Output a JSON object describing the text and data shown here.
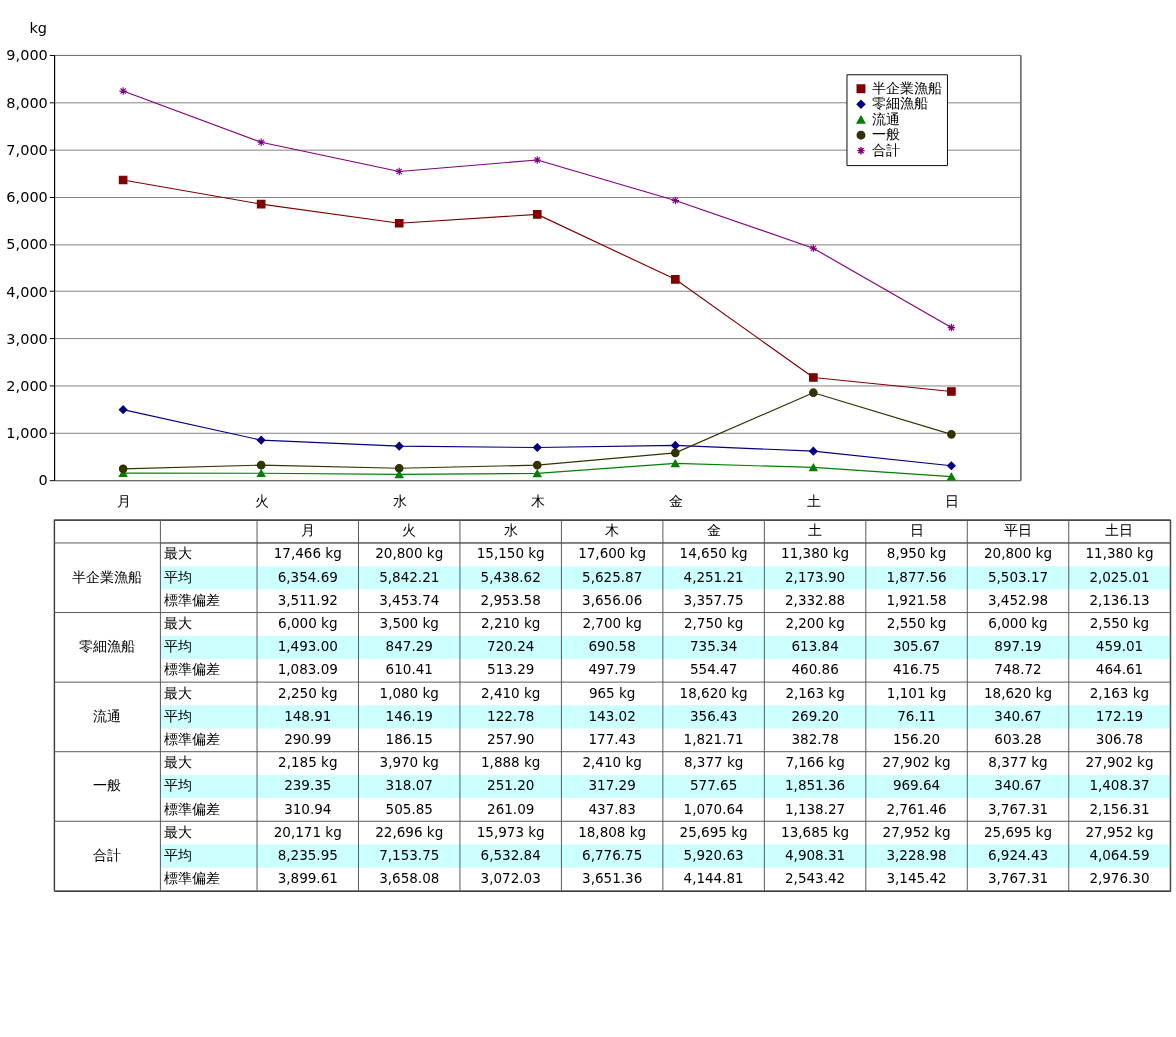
{
  "chart_data": [
    {
      "type": "line",
      "ylabel": "kg",
      "categories": [
        "月",
        "火",
        "水",
        "木",
        "金",
        "土",
        "日"
      ],
      "series": [
        {
          "name": "半企業漁船",
          "color": "#800000",
          "marker": "square",
          "values": [
            6354.69,
            5842.21,
            5438.62,
            5625.87,
            4251.21,
            2173.9,
            1877.56
          ]
        },
        {
          "name": "零細漁船",
          "color": "#000080",
          "marker": "diamond",
          "values": [
            1493.0,
            847.29,
            720.24,
            690.58,
            735.34,
            613.84,
            305.67
          ]
        },
        {
          "name": "流通",
          "color": "#008000",
          "marker": "triangle",
          "values": [
            148.91,
            146.19,
            122.78,
            143.02,
            356.43,
            269.2,
            76.11
          ]
        },
        {
          "name": "一般",
          "color": "#333300",
          "marker": "circle",
          "values": [
            239.35,
            318.07,
            251.2,
            317.29,
            577.65,
            1851.36,
            969.64
          ]
        },
        {
          "name": "合計",
          "color": "#800080",
          "marker": "cross",
          "values": [
            8235.95,
            7153.75,
            6532.84,
            6776.75,
            5920.63,
            4908.31,
            3228.98
          ]
        }
      ],
      "ylim": [
        0,
        9000
      ],
      "yticks": [
        {
          "value": 0,
          "label": "0"
        },
        {
          "value": 1000,
          "label": "1,000"
        },
        {
          "value": 2000,
          "label": "2,000"
        },
        {
          "value": 3000,
          "label": "3,000"
        },
        {
          "value": 4000,
          "label": "4,000"
        },
        {
          "value": 5000,
          "label": "5,000"
        },
        {
          "value": 6000,
          "label": "6,000"
        },
        {
          "value": 7000,
          "label": "7,000"
        },
        {
          "value": 8000,
          "label": "8,000"
        },
        {
          "value": 9000,
          "label": "9,000"
        }
      ],
      "grid": "y",
      "legend": "top right",
      "line_style": "solid"
    },
    {
      "type": "other",
      "categories": [
        "月",
        "火",
        "水",
        "木",
        "金",
        "土",
        "日",
        "平日",
        "土日"
      ],
      "y_categories": [
        "最大",
        "平均",
        "標準偏差",
        "最大",
        "平均",
        "標準偏差",
        "最大",
        "平均",
        "標準偏差",
        "最大",
        "平均",
        "標準偏差",
        "最大",
        "平均",
        "標準偏差"
      ],
      "y2_categories": [
        null,
        "半企業漁船",
        null,
        null,
        "零細漁船",
        null,
        null,
        "流通",
        null,
        null,
        "一般",
        null,
        null,
        "合計",
        null
      ],
      "cell_labels": [
        [
          "17,466 kg",
          "20,800 kg",
          "15,150 kg",
          "17,600 kg",
          "14,650 kg",
          "11,380 kg",
          "8,950 kg",
          "20,800 kg",
          "11,380 kg"
        ],
        [
          "6,354.69",
          "5,842.21",
          "5,438.62",
          "5,625.87",
          "4,251.21",
          "2,173.90",
          "1,877.56",
          "5,503.17",
          "2,025.01"
        ],
        [
          "3,511.92",
          "3,453.74",
          "2,953.58",
          "3,656.06",
          "3,357.75",
          "2,332.88",
          "1,921.58",
          "3,452.98",
          "2,136.13"
        ],
        [
          "6,000 kg",
          "3,500 kg",
          "2,210 kg",
          "2,700 kg",
          "2,750 kg",
          "2,200 kg",
          "2,550 kg",
          "6,000 kg",
          "2,550 kg"
        ],
        [
          "1,493.00",
          "847.29",
          "720.24",
          "690.58",
          "735.34",
          "613.84",
          "305.67",
          "897.19",
          "459.01"
        ],
        [
          "1,083.09",
          "610.41",
          "513.29",
          "497.79",
          "554.47",
          "460.86",
          "416.75",
          "748.72",
          "464.61"
        ],
        [
          "2,250 kg",
          "1,080 kg",
          "2,410 kg",
          "965 kg",
          "18,620 kg",
          "2,163 kg",
          "1,101 kg",
          "18,620 kg",
          "2,163 kg"
        ],
        [
          "148.91",
          "146.19",
          "122.78",
          "143.02",
          "356.43",
          "269.20",
          "76.11",
          "340.67",
          "172.19"
        ],
        [
          "290.99",
          "186.15",
          "257.90",
          "177.43",
          "1,821.71",
          "382.78",
          "156.20",
          "603.28",
          "306.78"
        ],
        [
          "2,185 kg",
          "3,970 kg",
          "1,888 kg",
          "2,410 kg",
          "8,377 kg",
          "7,166 kg",
          "27,902 kg",
          "8,377 kg",
          "27,902 kg"
        ],
        [
          "239.35",
          "318.07",
          "251.20",
          "317.29",
          "577.65",
          "1,851.36",
          "969.64",
          "340.67",
          "1,408.37"
        ],
        [
          "310.94",
          "505.85",
          "261.09",
          "437.83",
          "1,070.64",
          "1,138.27",
          "2,761.46",
          "3,767.31",
          "2,156.31"
        ],
        [
          "20,171 kg",
          "22,696 kg",
          "15,973 kg",
          "18,808 kg",
          "25,695 kg",
          "13,685 kg",
          "27,952 kg",
          "25,695 kg",
          "27,952 kg"
        ],
        [
          "8,235.95",
          "7,153.75",
          "6,532.84",
          "6,776.75",
          "5,920.63",
          "4,908.31",
          "3,228.98",
          "6,924.43",
          "4,064.59"
        ],
        [
          "3,899.61",
          "3,658.08",
          "3,072.03",
          "3,651.36",
          "4,144.81",
          "2,543.42",
          "3,145.42",
          "3,767.31",
          "2,976.30"
        ]
      ]
    }
  ]
}
